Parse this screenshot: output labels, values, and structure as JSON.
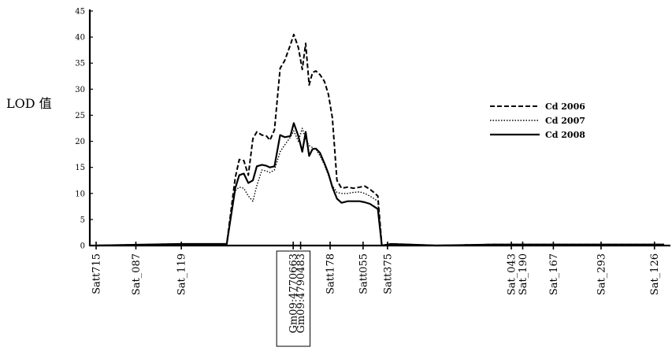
{
  "chart_data": {
    "type": "line",
    "title": "",
    "ylabel": "LOD 值",
    "xlabel": "",
    "ylim": [
      0,
      45
    ],
    "yticks": [
      0,
      5,
      10,
      15,
      20,
      25,
      30,
      35,
      40,
      45
    ],
    "xlim": [
      0,
      100
    ],
    "grid": false,
    "legend_position": "right",
    "markers": [
      {
        "label": "Satt715",
        "pos": 0.0
      },
      {
        "label": "Sat_087",
        "pos": 7.0
      },
      {
        "label": "Sat_119",
        "pos": 15.0
      },
      {
        "label": "Gm09:4770663",
        "pos": 34.7,
        "boxed": true
      },
      {
        "label": "Gm09:4790483",
        "pos": 36.0,
        "boxed": true
      },
      {
        "label": "Satt178",
        "pos": 41.2
      },
      {
        "label": "Satt055",
        "pos": 47.0
      },
      {
        "label": "Satt375",
        "pos": 51.3
      },
      {
        "label": "Sat_043",
        "pos": 73.1
      },
      {
        "label": "Sat_190",
        "pos": 75.1
      },
      {
        "label": "Sat_167",
        "pos": 80.5
      },
      {
        "label": "Sat_293",
        "pos": 88.9
      },
      {
        "label": "Sat_126",
        "pos": 98.3
      }
    ],
    "series": [
      {
        "name": "Cd 2006",
        "style": "dashed",
        "x": [
          0,
          15,
          23,
          24.5,
          25.2,
          26,
          26.8,
          27.6,
          28.3,
          29.2,
          30,
          30.6,
          31.4,
          32.4,
          33.2,
          34.2,
          34.8,
          35.6,
          36.3,
          36.9,
          37.5,
          38.1,
          38.7,
          39.4,
          40.2,
          40.9,
          41.6,
          42.4,
          43.2,
          44.3,
          45.3,
          46.4,
          47.3,
          48.2,
          48.9,
          49.6,
          50.3,
          52,
          60,
          70,
          80,
          90,
          100
        ],
        "values": [
          0,
          0.3,
          0.3,
          13,
          16.5,
          16.3,
          13.5,
          20.5,
          21.8,
          21.2,
          21,
          20.2,
          22.2,
          34,
          35.5,
          38.5,
          40.5,
          38,
          33.8,
          38.8,
          30.8,
          33.2,
          33.5,
          32.8,
          31.5,
          29,
          24.5,
          12.5,
          11,
          11.2,
          11,
          11.2,
          11.4,
          10.8,
          10.2,
          9.5,
          0,
          0.3,
          0,
          0.2,
          0.2,
          0.2,
          0.2
        ]
      },
      {
        "name": "Cd 2007",
        "style": "dotted",
        "x": [
          0,
          15,
          23,
          24.5,
          25.2,
          26,
          26.8,
          27.6,
          28.3,
          29.2,
          30,
          30.6,
          31.4,
          32.4,
          33.2,
          34.2,
          34.8,
          35.6,
          36.3,
          36.9,
          37.5,
          38.1,
          38.7,
          39.4,
          40.2,
          40.9,
          41.6,
          42.4,
          43.2,
          44.3,
          45.3,
          46.4,
          47.3,
          48.2,
          48.9,
          49.6,
          50.3,
          52,
          60,
          70,
          80,
          90,
          100
        ],
        "values": [
          0,
          0.3,
          0.3,
          10.5,
          11.2,
          11,
          9.5,
          8.5,
          11.5,
          14.5,
          14.3,
          14,
          14.5,
          18,
          19.3,
          20.8,
          22,
          20,
          22.5,
          20.3,
          19.2,
          18.8,
          18.5,
          17.2,
          15.5,
          13.5,
          11.5,
          10.2,
          10,
          10,
          10.2,
          10.3,
          10,
          9.5,
          9,
          8.5,
          0,
          0.3,
          0,
          0.2,
          0.2,
          0.2,
          0.2
        ]
      },
      {
        "name": "Cd 2008",
        "style": "solid",
        "x": [
          0,
          15,
          23,
          24.5,
          25.2,
          26,
          26.8,
          27.6,
          28.3,
          29.2,
          30,
          30.6,
          31.4,
          32.4,
          33.2,
          34.2,
          34.8,
          35.6,
          36.3,
          36.9,
          37.5,
          38.1,
          38.7,
          39.4,
          40.2,
          40.9,
          41.6,
          42.4,
          43.2,
          44.3,
          45.3,
          46.4,
          47.3,
          48.2,
          48.9,
          49.6,
          50.3,
          52,
          60,
          70,
          80,
          90,
          100
        ],
        "values": [
          0,
          0.3,
          0.3,
          11,
          13.5,
          13.8,
          12,
          12.5,
          15.2,
          15.5,
          15.3,
          15,
          15.2,
          21.2,
          20.8,
          21,
          23.5,
          21,
          18,
          21.8,
          17.2,
          18.5,
          18.6,
          17.8,
          15.8,
          13.8,
          11.2,
          9,
          8.2,
          8.5,
          8.5,
          8.5,
          8.3,
          8,
          7.5,
          7,
          0,
          0.3,
          0,
          0.2,
          0.2,
          0.2,
          0.2
        ]
      }
    ]
  }
}
